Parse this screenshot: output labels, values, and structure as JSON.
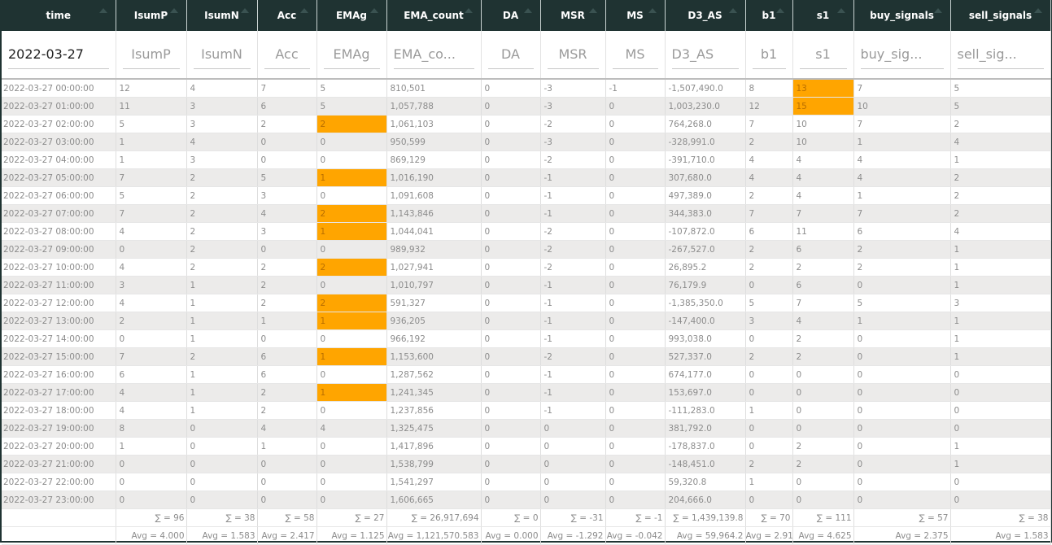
{
  "columns": [
    {
      "key": "time",
      "label": "time",
      "placeholder": "2022-03-27",
      "width": 140
    },
    {
      "key": "IsumP",
      "label": "IsumP",
      "placeholder": "IsumP",
      "width": 87
    },
    {
      "key": "IsumN",
      "label": "IsumN",
      "placeholder": "IsumN",
      "width": 87
    },
    {
      "key": "Acc",
      "label": "Acc",
      "placeholder": "Acc",
      "width": 73
    },
    {
      "key": "EMAg",
      "label": "EMAg",
      "placeholder": "EMAg",
      "width": 86
    },
    {
      "key": "EMA_count",
      "label": "EMA_count",
      "placeholder": "EMA_co...",
      "width": 116
    },
    {
      "key": "DA",
      "label": "DA",
      "placeholder": "DA",
      "width": 73
    },
    {
      "key": "MSR",
      "label": "MSR",
      "placeholder": "MSR",
      "width": 80
    },
    {
      "key": "MS",
      "label": "MS",
      "placeholder": "MS",
      "width": 73
    },
    {
      "key": "D3_AS",
      "label": "D3_AS",
      "placeholder": "D3_AS",
      "width": 99
    },
    {
      "key": "b1",
      "label": "b1",
      "placeholder": "b1",
      "width": 58
    },
    {
      "key": "s1",
      "label": "s1",
      "placeholder": "s1",
      "width": 75
    },
    {
      "key": "buy_signals",
      "label": "buy_signals",
      "placeholder": "buy_sig...",
      "width": 119
    },
    {
      "key": "sell_signals",
      "label": "sell_signals",
      "placeholder": "sell_sig...",
      "width": 123
    }
  ],
  "highlight_color": "#ffa500",
  "header_color": "#1f3332",
  "rows": [
    {
      "cells": [
        "2022-03-27 00:00:00",
        "12",
        "4",
        "7",
        "5",
        "810,501",
        "0",
        "-3",
        "-1",
        "-1,507,490.0",
        "8",
        "13",
        "7",
        "5"
      ],
      "hl": [
        11
      ]
    },
    {
      "cells": [
        "2022-03-27 01:00:00",
        "11",
        "3",
        "6",
        "5",
        "1,057,788",
        "0",
        "-3",
        "0",
        "1,003,230.0",
        "12",
        "15",
        "10",
        "5"
      ],
      "hl": [
        11
      ]
    },
    {
      "cells": [
        "2022-03-27 02:00:00",
        "5",
        "3",
        "2",
        "2",
        "1,061,103",
        "0",
        "-2",
        "0",
        "764,268.0",
        "7",
        "10",
        "7",
        "2"
      ],
      "hl": [
        4
      ]
    },
    {
      "cells": [
        "2022-03-27 03:00:00",
        "1",
        "4",
        "0",
        "0",
        "950,599",
        "0",
        "-3",
        "0",
        "-328,991.0",
        "2",
        "10",
        "1",
        "4"
      ],
      "hl": []
    },
    {
      "cells": [
        "2022-03-27 04:00:00",
        "1",
        "3",
        "0",
        "0",
        "869,129",
        "0",
        "-2",
        "0",
        "-391,710.0",
        "4",
        "4",
        "4",
        "1"
      ],
      "hl": []
    },
    {
      "cells": [
        "2022-03-27 05:00:00",
        "7",
        "2",
        "5",
        "1",
        "1,016,190",
        "0",
        "-1",
        "0",
        "307,680.0",
        "4",
        "4",
        "4",
        "2"
      ],
      "hl": [
        4
      ]
    },
    {
      "cells": [
        "2022-03-27 06:00:00",
        "5",
        "2",
        "3",
        "0",
        "1,091,608",
        "0",
        "-1",
        "0",
        "497,389.0",
        "2",
        "4",
        "1",
        "2"
      ],
      "hl": []
    },
    {
      "cells": [
        "2022-03-27 07:00:00",
        "7",
        "2",
        "4",
        "2",
        "1,143,846",
        "0",
        "-1",
        "0",
        "344,383.0",
        "7",
        "7",
        "7",
        "2"
      ],
      "hl": [
        4
      ]
    },
    {
      "cells": [
        "2022-03-27 08:00:00",
        "4",
        "2",
        "3",
        "1",
        "1,044,041",
        "0",
        "-2",
        "0",
        "-107,872.0",
        "6",
        "11",
        "6",
        "4"
      ],
      "hl": [
        4
      ]
    },
    {
      "cells": [
        "2022-03-27 09:00:00",
        "0",
        "2",
        "0",
        "0",
        "989,932",
        "0",
        "-2",
        "0",
        "-267,527.0",
        "2",
        "6",
        "2",
        "1"
      ],
      "hl": []
    },
    {
      "cells": [
        "2022-03-27 10:00:00",
        "4",
        "2",
        "2",
        "2",
        "1,027,941",
        "0",
        "-2",
        "0",
        "26,895.2",
        "2",
        "2",
        "2",
        "1"
      ],
      "hl": [
        4
      ]
    },
    {
      "cells": [
        "2022-03-27 11:00:00",
        "3",
        "1",
        "2",
        "0",
        "1,010,797",
        "0",
        "-1",
        "0",
        "76,179.9",
        "0",
        "6",
        "0",
        "1"
      ],
      "hl": []
    },
    {
      "cells": [
        "2022-03-27 12:00:00",
        "4",
        "1",
        "2",
        "2",
        "591,327",
        "0",
        "-1",
        "0",
        "-1,385,350.0",
        "5",
        "7",
        "5",
        "3"
      ],
      "hl": [
        4
      ]
    },
    {
      "cells": [
        "2022-03-27 13:00:00",
        "2",
        "1",
        "1",
        "1",
        "936,205",
        "0",
        "-1",
        "0",
        "-147,400.0",
        "3",
        "4",
        "1",
        "1"
      ],
      "hl": [
        4
      ]
    },
    {
      "cells": [
        "2022-03-27 14:00:00",
        "0",
        "1",
        "0",
        "0",
        "966,192",
        "0",
        "-1",
        "0",
        "993,038.0",
        "0",
        "2",
        "0",
        "1"
      ],
      "hl": []
    },
    {
      "cells": [
        "2022-03-27 15:00:00",
        "7",
        "2",
        "6",
        "1",
        "1,153,600",
        "0",
        "-2",
        "0",
        "527,337.0",
        "2",
        "2",
        "0",
        "1"
      ],
      "hl": [
        4
      ]
    },
    {
      "cells": [
        "2022-03-27 16:00:00",
        "6",
        "1",
        "6",
        "0",
        "1,287,562",
        "0",
        "-1",
        "0",
        "674,177.0",
        "0",
        "0",
        "0",
        "0"
      ],
      "hl": []
    },
    {
      "cells": [
        "2022-03-27 17:00:00",
        "4",
        "1",
        "2",
        "1",
        "1,241,345",
        "0",
        "-1",
        "0",
        "153,697.0",
        "0",
        "0",
        "0",
        "0"
      ],
      "hl": [
        4
      ]
    },
    {
      "cells": [
        "2022-03-27 18:00:00",
        "4",
        "1",
        "2",
        "0",
        "1,237,856",
        "0",
        "-1",
        "0",
        "-111,283.0",
        "1",
        "0",
        "0",
        "0"
      ],
      "hl": []
    },
    {
      "cells": [
        "2022-03-27 19:00:00",
        "8",
        "0",
        "4",
        "4",
        "1,325,475",
        "0",
        "0",
        "0",
        "381,792.0",
        "0",
        "0",
        "0",
        "0"
      ],
      "hl": []
    },
    {
      "cells": [
        "2022-03-27 20:00:00",
        "1",
        "0",
        "1",
        "0",
        "1,417,896",
        "0",
        "0",
        "0",
        "-178,837.0",
        "0",
        "2",
        "0",
        "1"
      ],
      "hl": []
    },
    {
      "cells": [
        "2022-03-27 21:00:00",
        "0",
        "0",
        "0",
        "0",
        "1,538,799",
        "0",
        "0",
        "0",
        "-148,451.0",
        "2",
        "2",
        "0",
        "1"
      ],
      "hl": []
    },
    {
      "cells": [
        "2022-03-27 22:00:00",
        "0",
        "0",
        "0",
        "0",
        "1,541,297",
        "0",
        "0",
        "0",
        "59,320.8",
        "1",
        "0",
        "0",
        "0"
      ],
      "hl": []
    },
    {
      "cells": [
        "2022-03-27 23:00:00",
        "0",
        "0",
        "0",
        "0",
        "1,606,665",
        "0",
        "0",
        "0",
        "204,666.0",
        "0",
        "0",
        "0",
        "0"
      ],
      "hl": []
    }
  ],
  "sums": [
    "",
    "∑ = 96",
    "∑ = 38",
    "∑ = 58",
    "∑ = 27",
    "∑ = 26,917,694",
    "∑ = 0",
    "∑ = -31",
    "∑ = -1",
    "∑ = 1,439,139.8",
    "∑ = 70",
    "∑ = 111",
    "∑ = 57",
    "∑ = 38"
  ],
  "avgs": [
    "",
    "Avg = 4.000",
    "Avg = 1.583",
    "Avg = 2.417",
    "Avg = 1.125",
    "Avg = 1,121,570.583",
    "Avg = 0.000",
    "Avg = -1.292",
    "Avg = -0.042",
    "Avg = 59,964.2",
    "Avg = 2.917",
    "Avg = 4.625",
    "Avg = 2.375",
    "Avg = 1.583"
  ]
}
